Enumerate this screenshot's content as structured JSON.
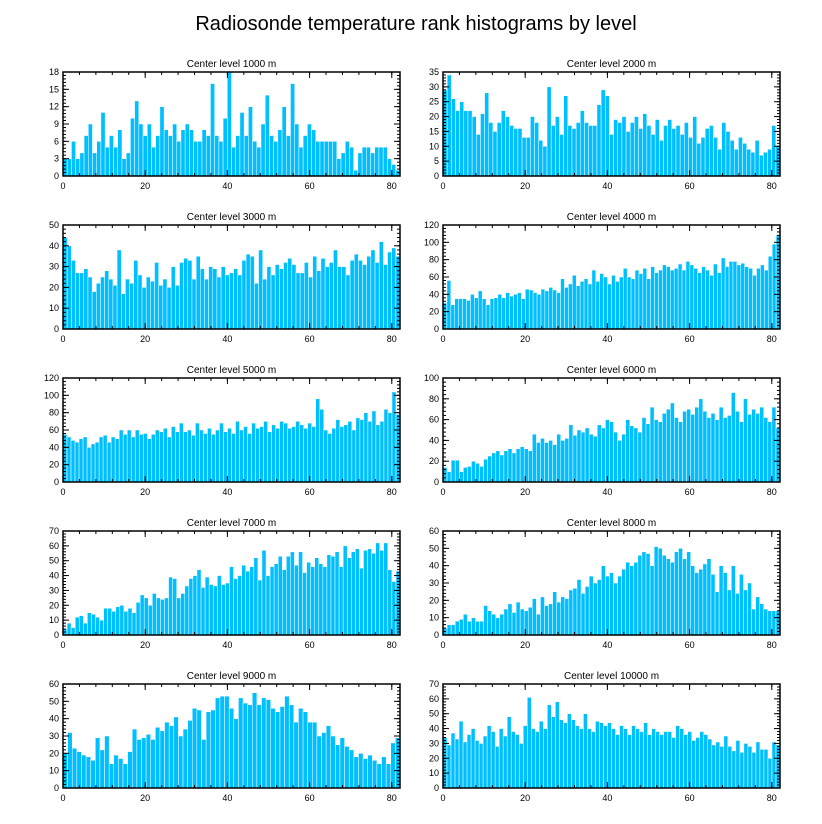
{
  "chart_data": {
    "type": "bar",
    "title": "Radiosonde temperature rank histograms by level",
    "bar_color": "#00bfff",
    "x_range": [
      0,
      82
    ],
    "x_ticks": [
      0,
      20,
      40,
      60,
      80
    ],
    "panels": [
      {
        "title": "Center level 1000 m",
        "ylim": [
          0,
          18
        ],
        "yticks": [
          0,
          3,
          6,
          9,
          12,
          15,
          18
        ],
        "values": [
          3,
          3,
          6,
          3,
          4,
          7,
          9,
          4,
          6,
          11,
          5,
          7,
          5,
          8,
          3,
          4,
          10,
          13,
          9,
          7,
          9,
          5,
          7,
          12,
          8,
          7,
          9,
          6,
          8,
          9,
          8,
          6,
          6,
          8,
          7,
          16,
          7,
          6,
          10,
          18,
          5,
          7,
          11,
          7,
          12,
          6,
          5,
          9,
          14,
          7,
          6,
          8,
          12,
          7,
          16,
          9,
          5,
          7,
          9,
          8,
          6,
          6,
          6,
          6,
          6,
          3,
          4,
          6,
          5,
          1,
          4,
          5,
          5,
          4,
          5,
          5,
          5,
          3,
          2,
          1
        ]
      },
      {
        "title": "Center level 2000 m",
        "ylim": [
          0,
          35
        ],
        "yticks": [
          0,
          5,
          10,
          15,
          20,
          25,
          30,
          35
        ],
        "values": [
          29,
          34,
          26,
          22,
          25,
          22,
          22,
          20,
          14,
          21,
          28,
          18,
          15,
          18,
          22,
          20,
          17,
          16,
          16,
          13,
          13,
          20,
          18,
          12,
          10,
          30,
          17,
          20,
          14,
          27,
          17,
          16,
          18,
          22,
          18,
          17,
          17,
          24,
          29,
          27,
          14,
          19,
          18,
          20,
          15,
          18,
          20,
          16,
          21,
          17,
          14,
          19,
          12,
          17,
          19,
          16,
          17,
          14,
          18,
          13,
          20,
          11,
          13,
          16,
          17,
          13,
          9,
          18,
          15,
          12,
          9,
          13,
          11,
          9,
          8,
          12,
          7,
          8,
          9,
          17,
          10
        ]
      },
      {
        "title": "Center level 3000 m",
        "ylim": [
          0,
          50
        ],
        "yticks": [
          0,
          10,
          20,
          30,
          40,
          50
        ],
        "values": [
          44,
          40,
          33,
          27,
          27,
          29,
          25,
          18,
          22,
          25,
          28,
          24,
          21,
          38,
          17,
          24,
          22,
          33,
          26,
          20,
          25,
          23,
          32,
          21,
          24,
          20,
          30,
          21,
          32,
          34,
          33,
          24,
          35,
          29,
          24,
          30,
          29,
          25,
          30,
          26,
          27,
          29,
          26,
          33,
          36,
          35,
          22,
          38,
          24,
          30,
          26,
          31,
          29,
          32,
          34,
          31,
          27,
          27,
          32,
          25,
          35,
          28,
          34,
          30,
          32,
          38,
          30,
          30,
          26,
          33,
          36,
          33,
          31,
          35,
          38,
          32,
          42,
          31,
          37,
          39,
          35
        ]
      },
      {
        "title": "Center level 4000 m",
        "ylim": [
          0,
          120
        ],
        "yticks": [
          0,
          20,
          40,
          60,
          80,
          100,
          120
        ],
        "values": [
          30,
          56,
          28,
          35,
          35,
          35,
          33,
          40,
          36,
          44,
          35,
          28,
          35,
          36,
          40,
          36,
          42,
          38,
          40,
          42,
          35,
          46,
          45,
          42,
          40,
          46,
          44,
          48,
          45,
          42,
          58,
          48,
          52,
          62,
          50,
          55,
          58,
          52,
          68,
          55,
          64,
          60,
          52,
          62,
          55,
          60,
          70,
          60,
          58,
          68,
          64,
          70,
          58,
          72,
          65,
          68,
          74,
          72,
          68,
          70,
          75,
          68,
          78,
          74,
          70,
          65,
          72,
          68,
          62,
          75,
          65,
          82,
          72,
          78,
          78,
          74,
          76,
          72,
          70,
          62,
          70,
          74,
          68,
          84,
          98,
          108
        ]
      },
      {
        "title": "Center level 5000 m",
        "ylim": [
          0,
          120
        ],
        "yticks": [
          0,
          20,
          40,
          60,
          80,
          100,
          120
        ],
        "values": [
          55,
          52,
          48,
          46,
          50,
          52,
          40,
          44,
          46,
          52,
          54,
          46,
          52,
          50,
          60,
          55,
          60,
          52,
          60,
          55,
          56,
          50,
          55,
          60,
          58,
          62,
          52,
          64,
          58,
          68,
          58,
          60,
          54,
          68,
          60,
          56,
          62,
          55,
          60,
          68,
          58,
          62,
          56,
          70,
          60,
          64,
          56,
          68,
          62,
          64,
          70,
          58,
          66,
          62,
          70,
          68,
          62,
          64,
          70,
          66,
          62,
          68,
          64,
          96,
          84,
          60,
          56,
          62,
          72,
          64,
          66,
          70,
          60,
          74,
          72,
          80,
          70,
          82,
          66,
          70,
          84,
          80,
          104,
          78
        ]
      },
      {
        "title": "Center level 6000 m",
        "ylim": [
          0,
          100
        ],
        "yticks": [
          0,
          20,
          40,
          60,
          80,
          100
        ],
        "values": [
          14,
          10,
          21,
          21,
          10,
          14,
          15,
          20,
          18,
          15,
          22,
          25,
          28,
          30,
          26,
          30,
          32,
          28,
          32,
          34,
          32,
          30,
          46,
          38,
          42,
          38,
          40,
          36,
          46,
          40,
          42,
          55,
          45,
          50,
          48,
          52,
          46,
          44,
          55,
          52,
          60,
          58,
          48,
          40,
          46,
          60,
          54,
          52,
          48,
          62,
          56,
          72,
          60,
          58,
          66,
          70,
          76,
          62,
          58,
          68,
          70,
          65,
          72,
          80,
          68,
          62,
          66,
          60,
          72,
          62,
          64,
          86,
          68,
          58,
          80,
          65,
          70,
          66,
          72,
          62,
          58,
          72,
          52
        ]
      },
      {
        "title": "Center level 7000 m",
        "ylim": [
          0,
          70
        ],
        "yticks": [
          0,
          10,
          20,
          30,
          40,
          50,
          60,
          70
        ],
        "values": [
          4,
          8,
          5,
          12,
          13,
          8,
          15,
          14,
          12,
          10,
          18,
          18,
          16,
          19,
          20,
          16,
          18,
          15,
          22,
          27,
          25,
          20,
          28,
          25,
          24,
          25,
          39,
          38,
          25,
          28,
          33,
          38,
          40,
          44,
          32,
          39,
          34,
          33,
          40,
          34,
          35,
          46,
          38,
          40,
          47,
          43,
          46,
          52,
          37,
          57,
          40,
          46,
          48,
          53,
          44,
          53,
          56,
          47,
          56,
          42,
          49,
          46,
          52,
          48,
          46,
          54,
          53,
          56,
          46,
          60,
          52,
          56,
          58,
          45,
          57,
          58,
          55,
          62,
          57,
          62,
          44,
          36,
          43
        ]
      },
      {
        "title": "Center level 8000 m",
        "ylim": [
          0,
          60
        ],
        "yticks": [
          0,
          10,
          20,
          30,
          40,
          50,
          60
        ],
        "values": [
          4,
          6,
          6,
          8,
          9,
          12,
          8,
          10,
          8,
          8,
          17,
          14,
          12,
          10,
          12,
          15,
          18,
          13,
          19,
          15,
          14,
          16,
          21,
          12,
          22,
          17,
          18,
          25,
          19,
          22,
          21,
          26,
          27,
          32,
          24,
          28,
          34,
          30,
          32,
          40,
          34,
          36,
          30,
          34,
          38,
          42,
          40,
          42,
          46,
          48,
          47,
          40,
          51,
          50,
          46,
          44,
          42,
          48,
          50,
          44,
          48,
          40,
          36,
          38,
          41,
          44,
          35,
          25,
          40,
          36,
          26,
          40,
          24,
          35,
          26,
          30,
          15,
          22,
          18,
          15,
          14,
          14,
          14
        ]
      },
      {
        "title": "Center level 9000 m",
        "ylim": [
          0,
          60
        ],
        "yticks": [
          0,
          10,
          20,
          30,
          40,
          50,
          60
        ],
        "values": [
          20,
          32,
          23,
          21,
          19,
          18,
          16,
          29,
          22,
          30,
          14,
          19,
          17,
          14,
          21,
          34,
          28,
          29,
          31,
          28,
          35,
          33,
          38,
          36,
          41,
          30,
          34,
          39,
          46,
          45,
          28,
          44,
          45,
          52,
          53,
          53,
          46,
          40,
          52,
          49,
          48,
          55,
          48,
          52,
          51,
          46,
          44,
          47,
          53,
          48,
          38,
          46,
          44,
          38,
          38,
          30,
          32,
          36,
          30,
          25,
          29,
          24,
          22,
          18,
          20,
          17,
          19,
          16,
          14,
          18,
          14,
          26,
          29
        ]
      },
      {
        "title": "Center level 10000 m",
        "ylim": [
          0,
          70
        ],
        "yticks": [
          0,
          10,
          20,
          30,
          40,
          50,
          60,
          70
        ],
        "values": [
          34,
          29,
          37,
          33,
          45,
          31,
          36,
          40,
          32,
          30,
          35,
          42,
          38,
          28,
          40,
          35,
          48,
          38,
          36,
          30,
          42,
          61,
          40,
          38,
          45,
          40,
          56,
          48,
          58,
          46,
          44,
          50,
          46,
          42,
          40,
          50,
          40,
          38,
          45,
          44,
          42,
          44,
          40,
          36,
          42,
          40,
          36,
          42,
          40,
          38,
          44,
          36,
          40,
          38,
          36,
          38,
          38,
          34,
          42,
          40,
          36,
          38,
          32,
          34,
          38,
          36,
          33,
          29,
          31,
          28,
          35,
          28,
          25,
          32,
          24,
          30,
          28,
          24,
          31,
          26,
          26,
          20,
          31,
          29
        ]
      }
    ]
  }
}
